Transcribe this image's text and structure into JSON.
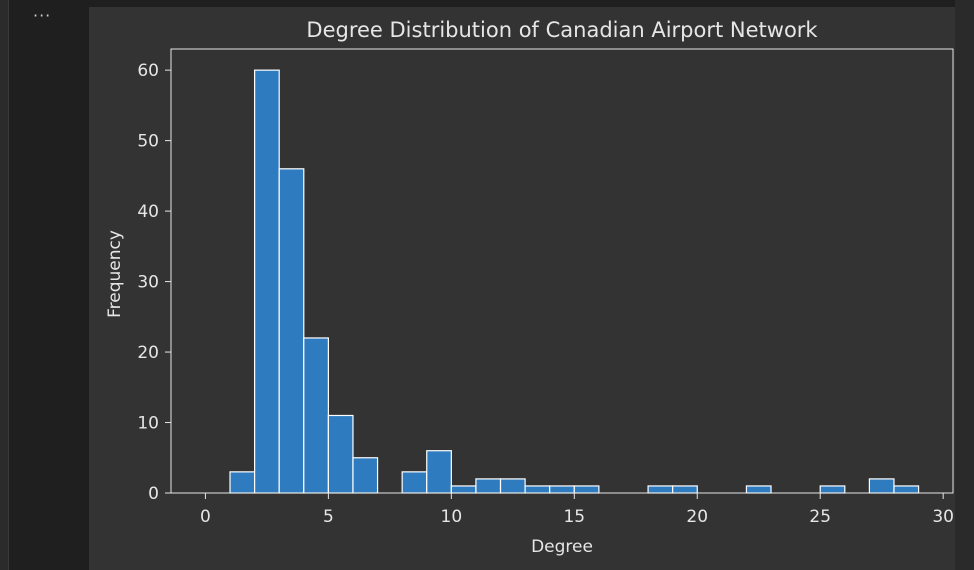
{
  "toolbar": {
    "more_label": "···"
  },
  "colors": {
    "background": "#333333",
    "bar_fill": "#2f7bbf",
    "bar_edge": "#ffffff",
    "axis": "#e6e6e6",
    "text": "#e6e6e6"
  },
  "chart_data": {
    "type": "bar",
    "title": "Degree Distribution of Canadian Airport Network",
    "xlabel": "Degree",
    "ylabel": "Frequency",
    "xlim": [
      -1.4,
      30.4
    ],
    "ylim": [
      0,
      63
    ],
    "xticks": [
      0,
      5,
      10,
      15,
      20,
      25,
      30
    ],
    "yticks": [
      0,
      10,
      20,
      30,
      40,
      50,
      60
    ],
    "bin_width": 1,
    "bins": [
      {
        "x0": 1,
        "x1": 2,
        "value": 3
      },
      {
        "x0": 2,
        "x1": 3,
        "value": 60
      },
      {
        "x0": 3,
        "x1": 4,
        "value": 46
      },
      {
        "x0": 4,
        "x1": 5,
        "value": 22
      },
      {
        "x0": 5,
        "x1": 6,
        "value": 11
      },
      {
        "x0": 6,
        "x1": 7,
        "value": 5
      },
      {
        "x0": 8,
        "x1": 9,
        "value": 3
      },
      {
        "x0": 9,
        "x1": 10,
        "value": 6
      },
      {
        "x0": 10,
        "x1": 11,
        "value": 1
      },
      {
        "x0": 11,
        "x1": 12,
        "value": 2
      },
      {
        "x0": 12,
        "x1": 13,
        "value": 2
      },
      {
        "x0": 13,
        "x1": 14,
        "value": 1
      },
      {
        "x0": 14,
        "x1": 15,
        "value": 1
      },
      {
        "x0": 15,
        "x1": 16,
        "value": 1
      },
      {
        "x0": 18,
        "x1": 19,
        "value": 1
      },
      {
        "x0": 19,
        "x1": 20,
        "value": 1
      },
      {
        "x0": 22,
        "x1": 23,
        "value": 1
      },
      {
        "x0": 25,
        "x1": 26,
        "value": 1
      },
      {
        "x0": 27,
        "x1": 28,
        "value": 2
      },
      {
        "x0": 28,
        "x1": 29,
        "value": 1
      }
    ],
    "grid": false
  }
}
